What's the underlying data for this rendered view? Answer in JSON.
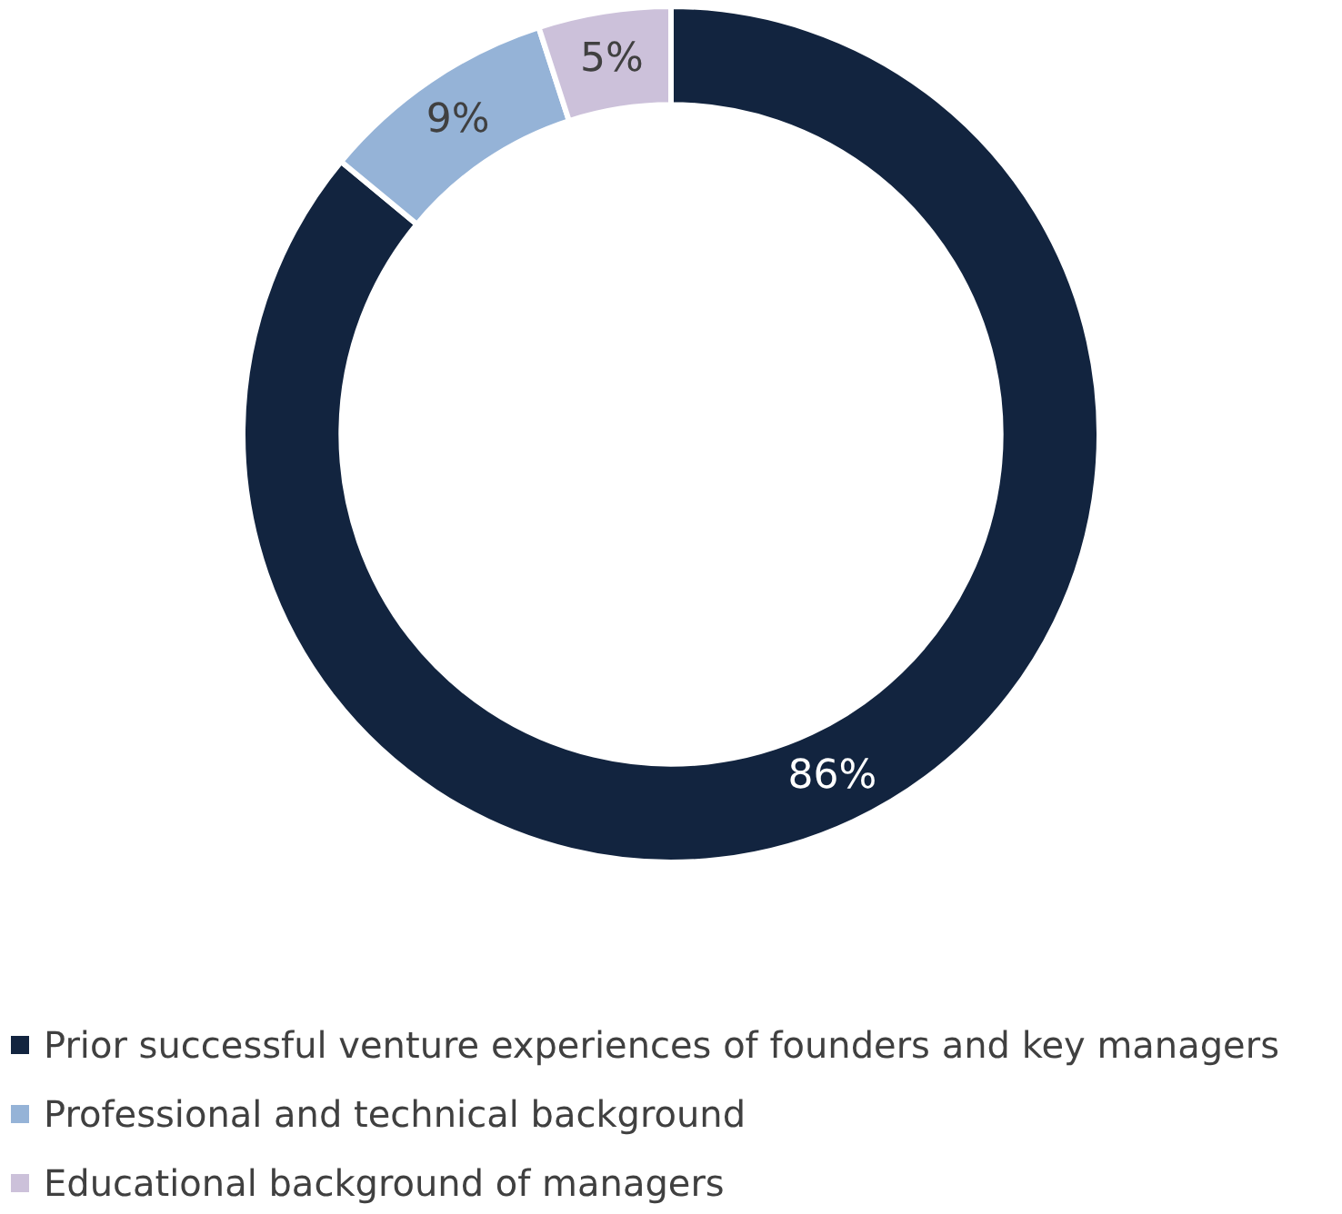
{
  "chart_data": {
    "type": "donut",
    "categories": [
      "Prior successful venture experiences of founders and key managers",
      "Professional and technical background",
      "Educational background of managers"
    ],
    "values": [
      86,
      9,
      5
    ],
    "colors": [
      "#12243f",
      "#95b3d7",
      "#ccc1da"
    ],
    "value_labels": [
      "86%",
      "9%",
      "5%"
    ],
    "legend": "bottom"
  }
}
